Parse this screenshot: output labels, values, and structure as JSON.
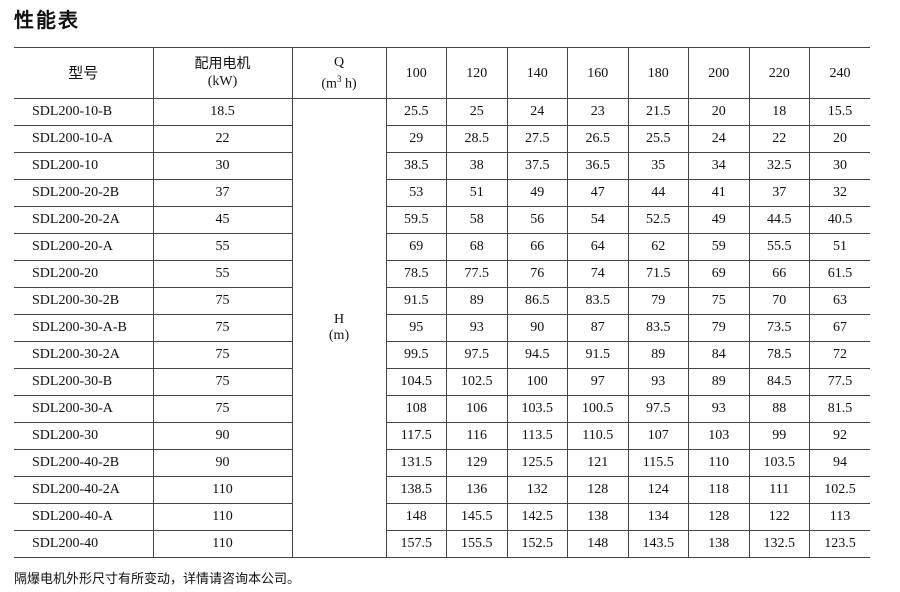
{
  "title": "性能表",
  "header": {
    "model": "型号",
    "motor_line1": "配用电机",
    "motor_line2": "(kW)",
    "q_line1": "Q",
    "q_unit_pre": "(m",
    "q_unit_sup": "3",
    "q_unit_post": " h)",
    "flows": [
      "100",
      "120",
      "140",
      "160",
      "180",
      "200",
      "220",
      "240"
    ]
  },
  "h_label_line1": "H",
  "h_label_line2": "(m)",
  "rows": [
    {
      "model": "SDL200-10-B",
      "kw": "18.5",
      "h": [
        "25.5",
        "25",
        "24",
        "23",
        "21.5",
        "20",
        "18",
        "15.5"
      ]
    },
    {
      "model": "SDL200-10-A",
      "kw": "22",
      "h": [
        "29",
        "28.5",
        "27.5",
        "26.5",
        "25.5",
        "24",
        "22",
        "20"
      ]
    },
    {
      "model": "SDL200-10",
      "kw": "30",
      "h": [
        "38.5",
        "38",
        "37.5",
        "36.5",
        "35",
        "34",
        "32.5",
        "30"
      ]
    },
    {
      "model": "SDL200-20-2B",
      "kw": "37",
      "h": [
        "53",
        "51",
        "49",
        "47",
        "44",
        "41",
        "37",
        "32"
      ]
    },
    {
      "model": "SDL200-20-2A",
      "kw": "45",
      "h": [
        "59.5",
        "58",
        "56",
        "54",
        "52.5",
        "49",
        "44.5",
        "40.5"
      ]
    },
    {
      "model": "SDL200-20-A",
      "kw": "55",
      "h": [
        "69",
        "68",
        "66",
        "64",
        "62",
        "59",
        "55.5",
        "51"
      ]
    },
    {
      "model": "SDL200-20",
      "kw": "55",
      "h": [
        "78.5",
        "77.5",
        "76",
        "74",
        "71.5",
        "69",
        "66",
        "61.5"
      ]
    },
    {
      "model": "SDL200-30-2B",
      "kw": "75",
      "h": [
        "91.5",
        "89",
        "86.5",
        "83.5",
        "79",
        "75",
        "70",
        "63"
      ]
    },
    {
      "model": "SDL200-30-A-B",
      "kw": "75",
      "h": [
        "95",
        "93",
        "90",
        "87",
        "83.5",
        "79",
        "73.5",
        "67"
      ]
    },
    {
      "model": "SDL200-30-2A",
      "kw": "75",
      "h": [
        "99.5",
        "97.5",
        "94.5",
        "91.5",
        "89",
        "84",
        "78.5",
        "72"
      ]
    },
    {
      "model": "SDL200-30-B",
      "kw": "75",
      "h": [
        "104.5",
        "102.5",
        "100",
        "97",
        "93",
        "89",
        "84.5",
        "77.5"
      ]
    },
    {
      "model": "SDL200-30-A",
      "kw": "75",
      "h": [
        "108",
        "106",
        "103.5",
        "100.5",
        "97.5",
        "93",
        "88",
        "81.5"
      ]
    },
    {
      "model": "SDL200-30",
      "kw": "90",
      "h": [
        "117.5",
        "116",
        "113.5",
        "110.5",
        "107",
        "103",
        "99",
        "92"
      ]
    },
    {
      "model": "SDL200-40-2B",
      "kw": "90",
      "h": [
        "131.5",
        "129",
        "125.5",
        "121",
        "115.5",
        "110",
        "103.5",
        "94"
      ]
    },
    {
      "model": "SDL200-40-2A",
      "kw": "110",
      "h": [
        "138.5",
        "136",
        "132",
        "128",
        "124",
        "118",
        "111",
        "102.5"
      ]
    },
    {
      "model": "SDL200-40-A",
      "kw": "110",
      "h": [
        "148",
        "145.5",
        "142.5",
        "138",
        "134",
        "128",
        "122",
        "113"
      ]
    },
    {
      "model": "SDL200-40",
      "kw": "110",
      "h": [
        "157.5",
        "155.5",
        "152.5",
        "148",
        "143.5",
        "138",
        "132.5",
        "123.5"
      ]
    }
  ],
  "note": "隔爆电机外形尺寸有所变动，详情请咨询本公司。"
}
